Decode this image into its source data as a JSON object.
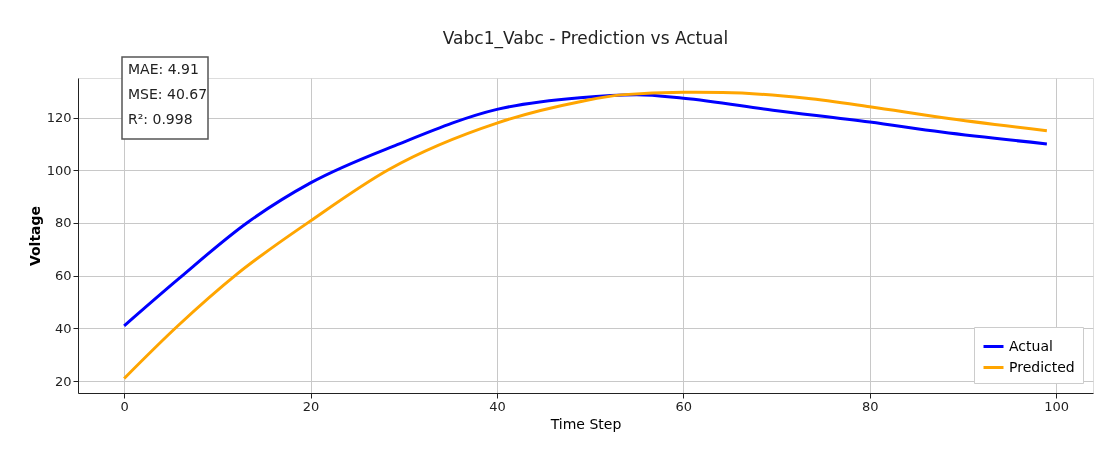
{
  "chart_data": {
    "type": "line",
    "title": "Vabc1_Vabc - Prediction vs Actual",
    "xlabel": "Time Step",
    "ylabel": "Voltage",
    "annotations": [
      "MAE: 4.91",
      "MSE: 40.67",
      "R²: 0.998"
    ],
    "xlim": [
      -4.95,
      103.95
    ],
    "xticks": [
      0,
      20,
      40,
      60,
      80,
      100
    ],
    "ylim": [
      15.5,
      135
    ],
    "yticks": [
      20,
      40,
      60,
      80,
      100,
      120
    ],
    "grid": true,
    "legend": "bottom right",
    "line_style": "solid",
    "marker": "none",
    "series": [
      {
        "name": "Actual",
        "color": "#0000ff",
        "x": [
          0,
          5.8,
          13.2,
          20,
          29.3,
          40,
          48.9,
          55,
          60,
          69.6,
          80,
          87.7,
          99
        ],
        "values": [
          41,
          58.7,
          80.1,
          95.2,
          109.7,
          123.1,
          127.5,
          128.6,
          127.3,
          122.8,
          118.3,
          114.5,
          110
        ]
      },
      {
        "name": "Predicted",
        "color": "#ffa500",
        "x": [
          0,
          5.8,
          12.1,
          20,
          28.4,
          40,
          48.9,
          53.3,
          60,
          64.2,
          73.2,
          80,
          87.7,
          99
        ],
        "values": [
          21,
          41.1,
          60.6,
          80.8,
          100.3,
          117.9,
          126,
          128.6,
          129.6,
          129.5,
          127.3,
          124.1,
          120,
          115
        ]
      }
    ]
  }
}
